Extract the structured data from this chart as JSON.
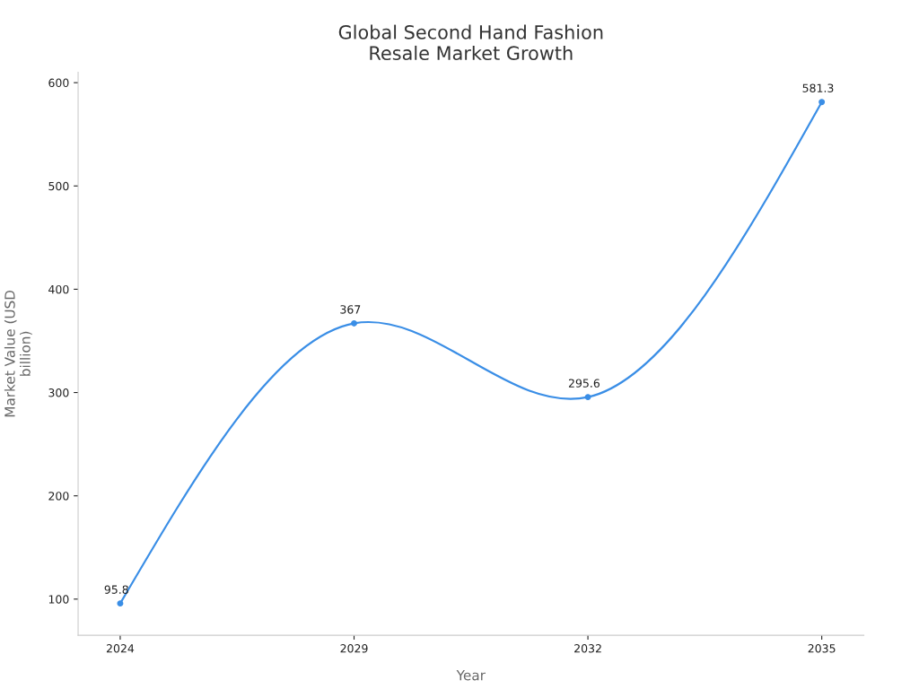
{
  "chart_data": {
    "type": "line",
    "title": "Global Second Hand Fashion\nResale Market Growth",
    "xlabel": "Year",
    "ylabel": "Market Value (USD\nbillion)",
    "categories": [
      "2024",
      "2029",
      "2032",
      "2035"
    ],
    "series": [
      {
        "color": "#3a8ee6",
        "values": [
          95.8,
          367,
          295.6,
          581.3
        ]
      }
    ],
    "ylim": [
      65,
      610
    ],
    "yticks": [
      100,
      200,
      300,
      400,
      500,
      600
    ],
    "data_labels": true,
    "marker": "circle",
    "line_style": "solid",
    "grid": false,
    "legend": false
  }
}
